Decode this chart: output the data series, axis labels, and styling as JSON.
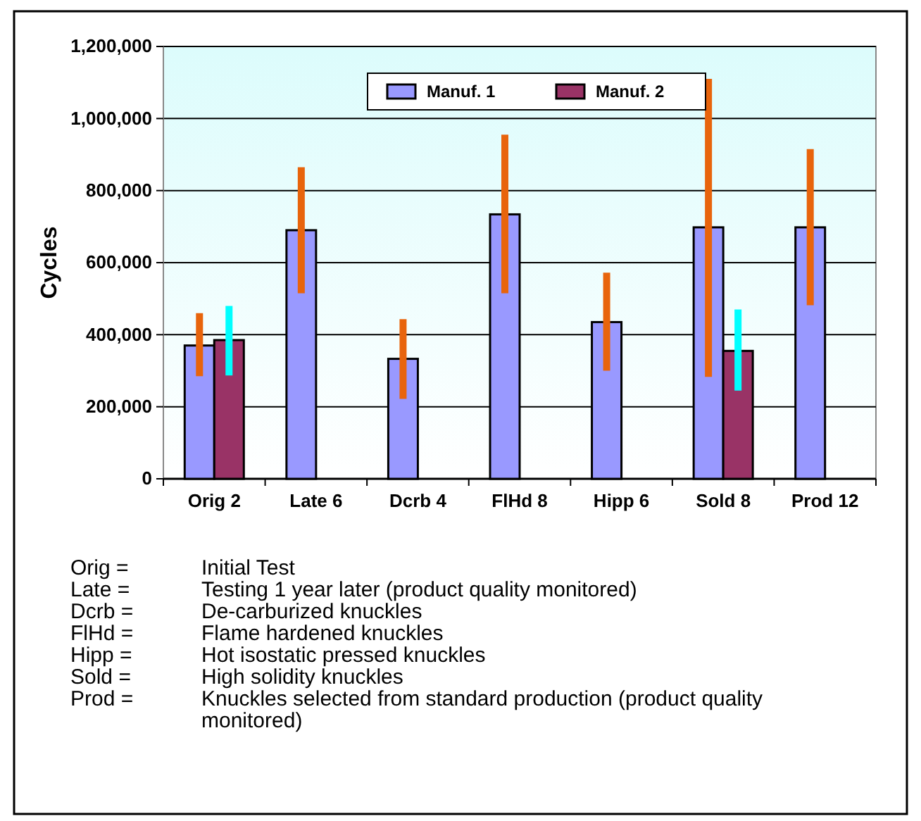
{
  "chart_data": {
    "type": "bar",
    "ylabel": "Cycles",
    "categories": [
      "Orig 2",
      "Late 6",
      "Dcrb 4",
      "FlHd 8",
      "Hipp 6",
      "Sold 8",
      "Prod 12"
    ],
    "series": [
      {
        "name": "Manuf. 1",
        "color": "#9999ff",
        "values": [
          370000,
          690000,
          333000,
          734000,
          435000,
          698000,
          698000
        ],
        "errors": [
          [
            285000,
            460000
          ],
          [
            515000,
            865000
          ],
          [
            222000,
            443000
          ],
          [
            515000,
            955000
          ],
          [
            300000,
            572000
          ],
          [
            283000,
            1110000
          ],
          [
            482000,
            915000
          ]
        ]
      },
      {
        "name": "Manuf. 2",
        "color": "#993366",
        "values": [
          385000,
          null,
          null,
          null,
          null,
          355000,
          null
        ],
        "errors": [
          [
            287000,
            480000
          ],
          null,
          null,
          null,
          null,
          [
            245000,
            470000
          ],
          null
        ]
      }
    ],
    "ylim": [
      0,
      1200000
    ],
    "yticks": [
      {
        "value": 0,
        "label": "0"
      },
      {
        "value": 200000,
        "label": "200,000"
      },
      {
        "value": 400000,
        "label": "400,000"
      },
      {
        "value": 600000,
        "label": "600,000"
      },
      {
        "value": 800000,
        "label": "800,000"
      },
      {
        "value": 1000000,
        "label": "1,000,000"
      },
      {
        "value": 1200000,
        "label": "1,200,000"
      }
    ],
    "grid": "y",
    "legend": "top",
    "annotations": [
      "Orig =\tInitial Test",
      "Late =\tTesting 1 year later (product quality monitored)",
      "Dcrb =\tDe-carburized knuckles",
      "FlHd =\tFlame hardened knuckles",
      "Hipp =\tHot isostatic pressed knuckles",
      "Sold =\tHigh solidity knuckles",
      "Prod =\tKnuckles selected from standard production (product quality monitored)"
    ]
  }
}
